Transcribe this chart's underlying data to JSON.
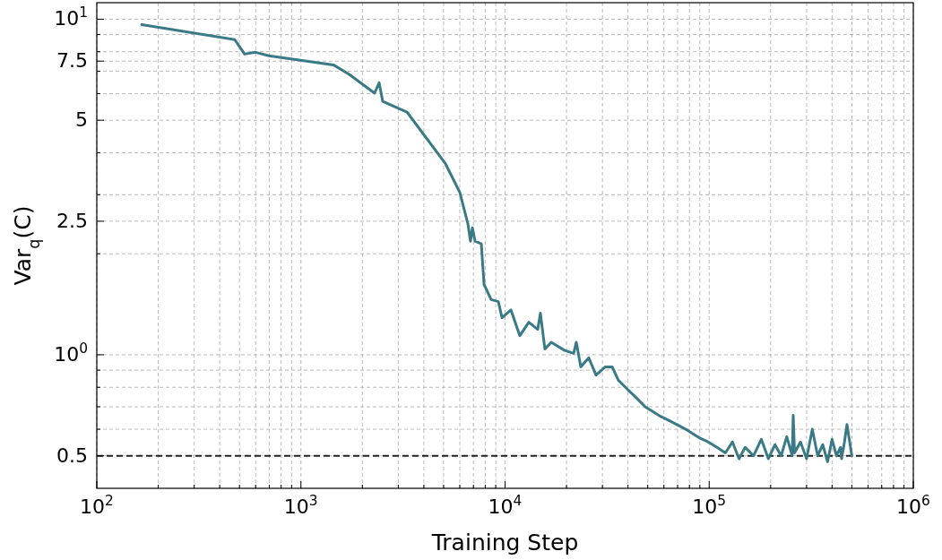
{
  "chart_data": {
    "type": "line",
    "xlabel": "Training Step",
    "ylabel": "Var$_{q}$(C)",
    "log": "xy",
    "grid": true,
    "line_style": "solid",
    "xlim": [
      100,
      1000000
    ],
    "ylim": [
      0.4,
      11.2
    ],
    "xticks": [
      {
        "value": 100,
        "label": "10$^{2}$"
      },
      {
        "value": 200,
        "label": null
      },
      {
        "value": 300,
        "label": null
      },
      {
        "value": 400,
        "label": null
      },
      {
        "value": 500,
        "label": null
      },
      {
        "value": 600,
        "label": null
      },
      {
        "value": 700,
        "label": null
      },
      {
        "value": 800,
        "label": null
      },
      {
        "value": 900,
        "label": null
      },
      {
        "value": 1000,
        "label": "10$^{3}$"
      },
      {
        "value": 2000,
        "label": null
      },
      {
        "value": 3000,
        "label": null
      },
      {
        "value": 4000,
        "label": null
      },
      {
        "value": 5000,
        "label": null
      },
      {
        "value": 6000,
        "label": null
      },
      {
        "value": 7000,
        "label": null
      },
      {
        "value": 8000,
        "label": null
      },
      {
        "value": 9000,
        "label": null
      },
      {
        "value": 10000,
        "label": "10$^{4}$"
      },
      {
        "value": 20000,
        "label": null
      },
      {
        "value": 30000,
        "label": null
      },
      {
        "value": 40000,
        "label": null
      },
      {
        "value": 50000,
        "label": null
      },
      {
        "value": 60000,
        "label": null
      },
      {
        "value": 70000,
        "label": null
      },
      {
        "value": 80000,
        "label": null
      },
      {
        "value": 90000,
        "label": null
      },
      {
        "value": 100000,
        "label": "10$^{5}$"
      },
      {
        "value": 200000,
        "label": null
      },
      {
        "value": 300000,
        "label": null
      },
      {
        "value": 400000,
        "label": null
      },
      {
        "value": 500000,
        "label": null
      },
      {
        "value": 600000,
        "label": null
      },
      {
        "value": 700000,
        "label": null
      },
      {
        "value": 800000,
        "label": null
      },
      {
        "value": 900000,
        "label": null
      },
      {
        "value": 1000000,
        "label": "10$^{6}$"
      }
    ],
    "yticks": [
      0.5,
      {
        "value": 0.6,
        "label": null
      },
      {
        "value": 0.7,
        "label": null
      },
      {
        "value": 0.8,
        "label": null
      },
      {
        "value": 0.9,
        "label": null
      },
      {
        "value": 1,
        "label": "10$^{0}$"
      },
      {
        "value": 2,
        "label": null
      },
      2.5,
      {
        "value": 3,
        "label": null
      },
      {
        "value": 4,
        "label": null
      },
      5,
      {
        "value": 6,
        "label": null
      },
      {
        "value": 7,
        "label": null
      },
      7.5,
      {
        "value": 8,
        "label": null
      },
      {
        "value": 9,
        "label": null
      },
      {
        "value": 10,
        "label": "10$^{1}$"
      }
    ],
    "ref_lines": [
      {
        "axis": "y",
        "value": 0.5,
        "label": null,
        "color": "#222222",
        "line_style": "dashed"
      }
    ],
    "series": [
      {
        "color": "#3a7a86",
        "x": [
          166,
          474,
          530,
          598,
          697,
          1443,
          1730,
          2296,
          2416,
          2516,
          3306,
          5105,
          6000,
          6573,
          6770,
          6918,
          7130,
          7650,
          7890,
          8550,
          9270,
          9660,
          10690,
          11810,
          13070,
          14450,
          14900,
          15670,
          16830,
          19590,
          21680,
          22340,
          23500,
          25700,
          27900,
          30900,
          33500,
          35900,
          39700,
          43950,
          48600,
          56600,
          65900,
          76700,
          89300,
          98800,
          109200,
          120000,
          130000,
          140000,
          150000,
          165000,
          180000,
          195000,
          210000,
          225000,
          240000,
          255000,
          258000,
          262000,
          280000,
          300000,
          320000,
          340000,
          360000,
          380000,
          400000,
          420000,
          440000,
          445000,
          460000,
          473000,
          500000
        ],
        "values": [
          9.64,
          8.69,
          7.87,
          7.97,
          7.78,
          7.31,
          6.84,
          6.02,
          6.47,
          5.69,
          5.29,
          3.71,
          3.05,
          2.46,
          2.18,
          2.39,
          2.18,
          2.14,
          1.62,
          1.46,
          1.44,
          1.29,
          1.36,
          1.14,
          1.25,
          1.19,
          1.33,
          1.04,
          1.09,
          1.03,
          1.01,
          1.09,
          0.92,
          0.98,
          0.87,
          0.92,
          0.92,
          0.84,
          0.79,
          0.745,
          0.7,
          0.66,
          0.63,
          0.6,
          0.566,
          0.55,
          0.53,
          0.51,
          0.55,
          0.49,
          0.53,
          0.5,
          0.56,
          0.49,
          0.54,
          0.5,
          0.57,
          0.5,
          0.66,
          0.51,
          0.55,
          0.49,
          0.6,
          0.5,
          0.54,
          0.48,
          0.56,
          0.5,
          0.53,
          0.49,
          0.55,
          0.62,
          0.5
        ]
      }
    ]
  }
}
